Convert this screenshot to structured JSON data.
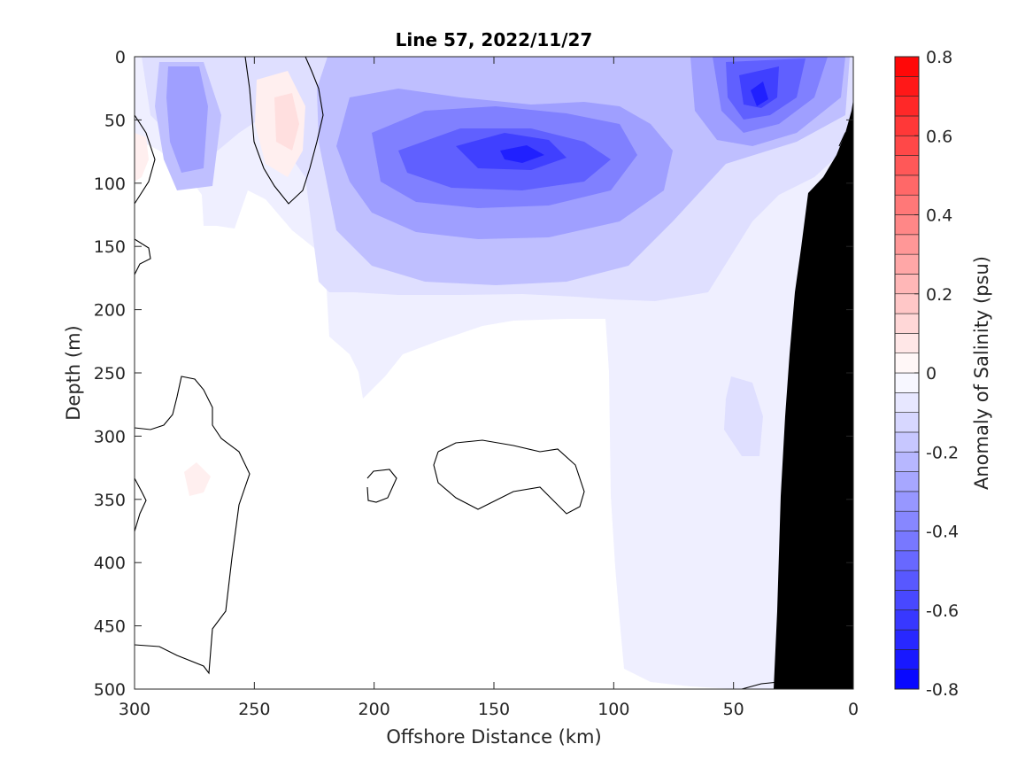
{
  "chart_data": {
    "type": "heatmap",
    "subtype": "filled-contour-section",
    "title": "Line 57, 2022/11/27",
    "xlabel": "Offshore Distance (km)",
    "ylabel": "Depth (m)",
    "xlim": [
      300,
      0
    ],
    "x_reversed": true,
    "ylim": [
      0,
      500
    ],
    "y_reversed": true,
    "xticks": [
      "300",
      "250",
      "200",
      "150",
      "100",
      "50",
      "0"
    ],
    "yticks": [
      "0",
      "50",
      "100",
      "150",
      "200",
      "250",
      "300",
      "350",
      "400",
      "450",
      "500"
    ],
    "colorbar": {
      "label": "Anomaly of Salinity (psu)",
      "range": [
        -0.8,
        0.8
      ],
      "step": 0.05,
      "ticks": [
        "0.8",
        "0.6",
        "0.4",
        "0.2",
        "0",
        "-0.2",
        "-0.4",
        "-0.6",
        "-0.8"
      ],
      "colormap": "blue-white-red",
      "negative_color": "#0000ff",
      "positive_color": "#ff0000",
      "zero_color": "#ffffff"
    },
    "zero_contour_color": "#000000",
    "bathymetry_color": "#000000",
    "features": [
      {
        "kind": "minimum",
        "offshore_km": 140,
        "depth_m": 80,
        "anomaly_psu": -0.7
      },
      {
        "kind": "minimum",
        "offshore_km": 40,
        "depth_m": 35,
        "anomaly_psu": -0.7
      },
      {
        "kind": "minimum",
        "offshore_km": 275,
        "depth_m": 65,
        "anomaly_psu": -0.3
      },
      {
        "kind": "maximum",
        "offshore_km": 237,
        "depth_m": 45,
        "anomaly_psu": 0.1
      },
      {
        "kind": "maximum",
        "offshore_km": 300,
        "depth_m": 78,
        "anomaly_psu": 0.1
      },
      {
        "kind": "maximum",
        "offshore_km": 275,
        "depth_m": 330,
        "anomaly_psu": 0.05
      },
      {
        "kind": "minimum",
        "offshore_km": 45,
        "depth_m": 280,
        "anomaly_psu": -0.1
      }
    ]
  }
}
